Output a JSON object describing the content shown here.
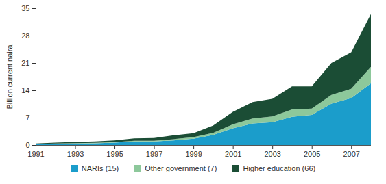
{
  "chart_data": {
    "type": "area",
    "stacked": true,
    "y_label": "Billion current naira",
    "x": [
      1991,
      1992,
      1993,
      1994,
      1995,
      1996,
      1997,
      1998,
      1999,
      2000,
      2001,
      2002,
      2003,
      2004,
      2005,
      2006,
      2007,
      2008
    ],
    "xlim": [
      1991,
      2008
    ],
    "xticks": [
      1991,
      1993,
      1995,
      1997,
      1999,
      2001,
      2003,
      2005,
      2007
    ],
    "ylim": [
      0,
      35
    ],
    "yticks": [
      0,
      7,
      14,
      21,
      28,
      35
    ],
    "legend": "bottom",
    "series": [
      {
        "name": "NARIs (15)",
        "color": "#1b9dcb",
        "values": [
          0.2,
          0.3,
          0.4,
          0.45,
          0.6,
          0.9,
          0.9,
          1.2,
          1.6,
          2.6,
          4.3,
          5.5,
          5.8,
          7.2,
          7.7,
          10.6,
          12.0,
          15.8
        ]
      },
      {
        "name": "Other government (7)",
        "color": "#8dc89b",
        "values": [
          0.05,
          0.1,
          0.1,
          0.1,
          0.15,
          0.2,
          0.2,
          0.3,
          0.4,
          0.5,
          1.0,
          1.3,
          1.5,
          1.9,
          1.6,
          2.2,
          2.4,
          4.2
        ]
      },
      {
        "name": "Higher education (66)",
        "color": "#1b4d35",
        "values": [
          0.15,
          0.2,
          0.3,
          0.35,
          0.45,
          0.6,
          0.7,
          1.0,
          1.0,
          1.9,
          3.2,
          4.2,
          4.5,
          5.9,
          5.7,
          8.2,
          9.3,
          13.5
        ]
      }
    ]
  }
}
